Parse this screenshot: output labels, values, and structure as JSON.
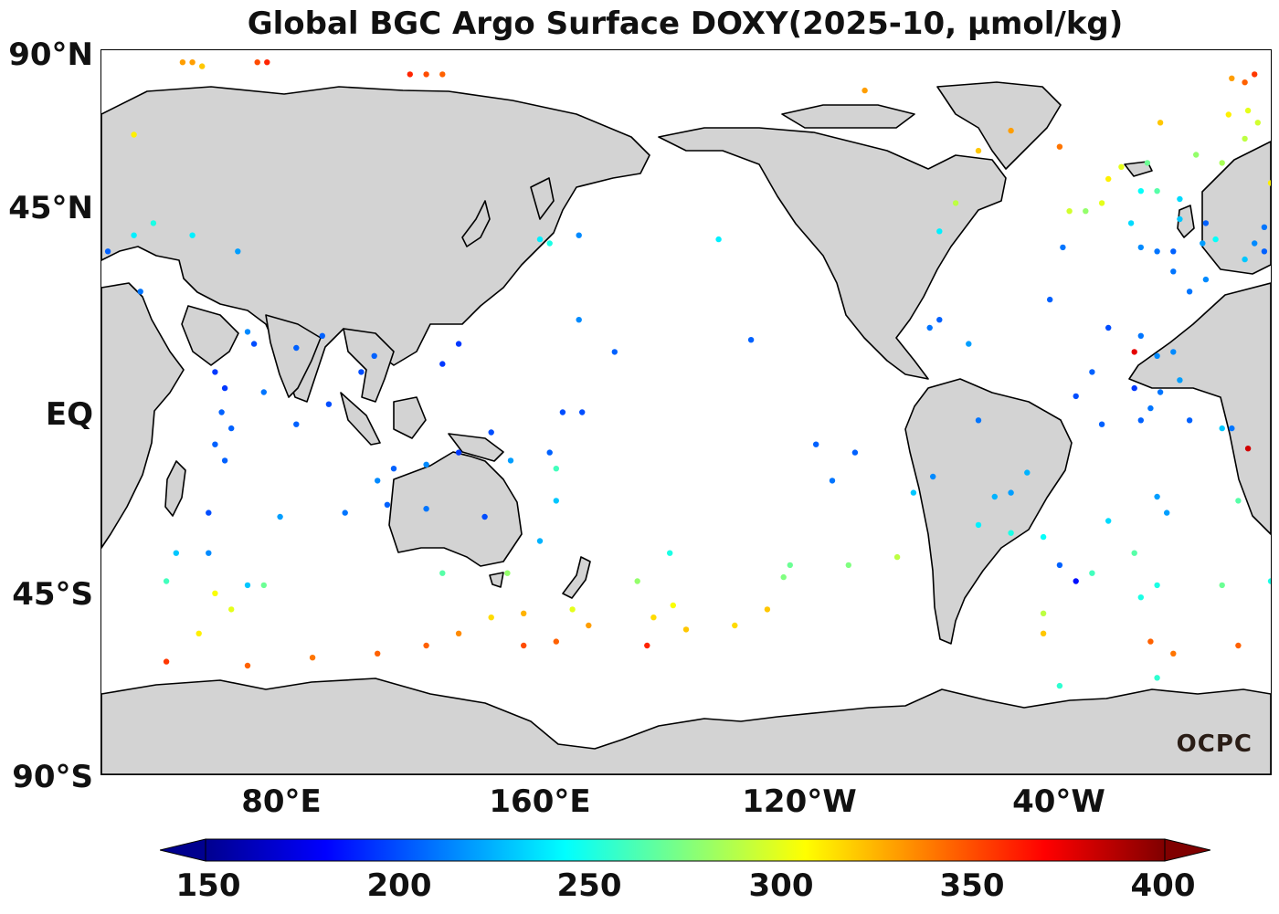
{
  "title": "Global BGC Argo Surface DOXY(2025-10, μmol/kg)",
  "lat_labels": [
    "90°N",
    "45°N",
    "EQ",
    "45°S",
    "90°S"
  ],
  "lon_labels": [
    "80°E",
    "160°E",
    "120°W",
    "40°W"
  ],
  "colorbar": {
    "ticks": [
      "150",
      "200",
      "250",
      "300",
      "350",
      "400"
    ],
    "min": 150,
    "max": 400,
    "colormap": "jet"
  },
  "logo_text": "OCPC",
  "colors": {
    "land": "#d3d3d3",
    "ocean": "#ffffff",
    "coast": "#000000"
  },
  "map_extent": {
    "lon_min": 20,
    "lon_max": 380,
    "lat_min": -90,
    "lat_max": 90
  },
  "floats": [
    [
      30,
      69,
      310
    ],
    [
      30,
      44,
      240
    ],
    [
      22,
      40,
      205
    ],
    [
      32,
      30,
      210
    ],
    [
      55,
      10,
      195
    ],
    [
      55,
      -8,
      205
    ],
    [
      53,
      -25,
      200
    ],
    [
      53,
      -35,
      215
    ],
    [
      43,
      -35,
      230
    ],
    [
      40,
      -42,
      260
    ],
    [
      55,
      -45,
      305
    ],
    [
      60,
      -49,
      300
    ],
    [
      75,
      -26,
      220
    ],
    [
      65,
      -43,
      230
    ],
    [
      95,
      -25,
      210
    ],
    [
      108,
      -23,
      205
    ],
    [
      120,
      -24,
      210
    ],
    [
      125,
      -40,
      265
    ],
    [
      138,
      -26,
      200
    ],
    [
      145,
      -40,
      280
    ],
    [
      155,
      -32,
      225
    ],
    [
      160,
      -22,
      230
    ],
    [
      160,
      -14,
      260
    ],
    [
      158,
      -10,
      205
    ],
    [
      146,
      -12,
      220
    ],
    [
      140,
      -5,
      200
    ],
    [
      130,
      -10,
      195
    ],
    [
      120,
      -13,
      215
    ],
    [
      110,
      -14,
      205
    ],
    [
      105,
      -17,
      215
    ],
    [
      70,
      5,
      210
    ],
    [
      80,
      -3,
      205
    ],
    [
      90,
      2,
      200
    ],
    [
      65,
      20,
      215
    ],
    [
      80,
      16,
      205
    ],
    [
      88,
      19,
      205
    ],
    [
      100,
      10,
      200
    ],
    [
      104,
      14,
      205
    ],
    [
      125,
      12,
      195
    ],
    [
      130,
      17,
      195
    ],
    [
      162,
      0,
      200
    ],
    [
      168,
      0,
      200
    ],
    [
      178,
      15,
      205
    ],
    [
      167,
      23,
      215
    ],
    [
      158,
      42,
      250
    ],
    [
      155,
      43,
      240
    ],
    [
      167,
      44,
      215
    ],
    [
      210,
      43,
      240
    ],
    [
      220,
      18,
      205
    ],
    [
      195,
      -35,
      250
    ],
    [
      185,
      -42,
      280
    ],
    [
      196,
      -48,
      305
    ],
    [
      188,
      -58,
      360
    ],
    [
      170,
      -53,
      330
    ],
    [
      160,
      -57,
      345
    ],
    [
      150,
      -58,
      350
    ],
    [
      140,
      -51,
      315
    ],
    [
      130,
      -55,
      335
    ],
    [
      120,
      -58,
      345
    ],
    [
      105,
      -60,
      345
    ],
    [
      85,
      -61,
      340
    ],
    [
      65,
      -63,
      345
    ],
    [
      50,
      -55,
      310
    ],
    [
      40,
      -62,
      355
    ],
    [
      150,
      -50,
      325
    ],
    [
      165,
      -49,
      300
    ],
    [
      190,
      -51,
      315
    ],
    [
      200,
      -54,
      320
    ],
    [
      215,
      -53,
      315
    ],
    [
      230,
      -41,
      275
    ],
    [
      250,
      -38,
      275
    ],
    [
      265,
      -36,
      290
    ],
    [
      290,
      -28,
      240
    ],
    [
      295,
      -21,
      225
    ],
    [
      300,
      -20,
      220
    ],
    [
      305,
      -15,
      225
    ],
    [
      290,
      -2,
      210
    ],
    [
      287,
      17,
      220
    ],
    [
      276,
      -16,
      215
    ],
    [
      245,
      -17,
      210
    ],
    [
      240,
      -8,
      205
    ],
    [
      270,
      -20,
      230
    ],
    [
      300,
      -30,
      250
    ],
    [
      315,
      -38,
      205
    ],
    [
      320,
      -42,
      185
    ],
    [
      310,
      -50,
      290
    ],
    [
      325,
      -40,
      260
    ],
    [
      345,
      -43,
      250
    ],
    [
      365,
      -43,
      270
    ],
    [
      370,
      -58,
      345
    ],
    [
      380,
      -42,
      250
    ],
    [
      350,
      -60,
      340
    ],
    [
      343,
      -57,
      345
    ],
    [
      340,
      -46,
      250
    ],
    [
      345,
      -66,
      255
    ],
    [
      315,
      -68,
      255
    ],
    [
      310,
      -55,
      320
    ],
    [
      310,
      -31,
      245
    ],
    [
      330,
      -27,
      235
    ],
    [
      338,
      -35,
      265
    ],
    [
      345,
      -21,
      220
    ],
    [
      348,
      -25,
      220
    ],
    [
      365,
      -4,
      230
    ],
    [
      370,
      -22,
      265
    ],
    [
      373,
      -9,
      380
    ],
    [
      368,
      -4,
      210
    ],
    [
      355,
      -2,
      205
    ],
    [
      340,
      -2,
      205
    ],
    [
      343,
      1,
      210
    ],
    [
      346,
      5,
      210
    ],
    [
      338,
      6,
      195
    ],
    [
      328,
      -3,
      205
    ],
    [
      320,
      4,
      200
    ],
    [
      345,
      14,
      215
    ],
    [
      350,
      15,
      215
    ],
    [
      352,
      8,
      220
    ],
    [
      338,
      15,
      375
    ],
    [
      340,
      19,
      210
    ],
    [
      330,
      21,
      200
    ],
    [
      325,
      10,
      205
    ],
    [
      312,
      28,
      205
    ],
    [
      316,
      41,
      210
    ],
    [
      323,
      50,
      280
    ],
    [
      328,
      52,
      300
    ],
    [
      318,
      50,
      295
    ],
    [
      345,
      40,
      210
    ],
    [
      350,
      35,
      210
    ],
    [
      355,
      30,
      210
    ],
    [
      360,
      33,
      215
    ],
    [
      375,
      42,
      215
    ],
    [
      378,
      40,
      205
    ],
    [
      372,
      38,
      230
    ],
    [
      378,
      46,
      210
    ],
    [
      360,
      47,
      205
    ],
    [
      350,
      40,
      205
    ],
    [
      352,
      48,
      230
    ],
    [
      340,
      41,
      215
    ],
    [
      337,
      47,
      235
    ],
    [
      340,
      55,
      245
    ],
    [
      345,
      55,
      265
    ],
    [
      342,
      62,
      270
    ],
    [
      352,
      53,
      235
    ],
    [
      357,
      64,
      280
    ],
    [
      365,
      62,
      285
    ],
    [
      372,
      68,
      290
    ],
    [
      376,
      72,
      295
    ],
    [
      373,
      75,
      300
    ],
    [
      367,
      74,
      310
    ],
    [
      372,
      82,
      345
    ],
    [
      375,
      84,
      355
    ],
    [
      368,
      83,
      330
    ],
    [
      380,
      57,
      310
    ],
    [
      383,
      62,
      310
    ],
    [
      386,
      56,
      300
    ],
    [
      363,
      43,
      245
    ],
    [
      359,
      42,
      220
    ],
    [
      346,
      72,
      320
    ],
    [
      334,
      61,
      300
    ],
    [
      330,
      58,
      310
    ],
    [
      315,
      66,
      340
    ],
    [
      300,
      70,
      330
    ],
    [
      290,
      65,
      320
    ],
    [
      278,
      45,
      240
    ],
    [
      283,
      52,
      290
    ],
    [
      278,
      23,
      205
    ],
    [
      275,
      21,
      210
    ],
    [
      252,
      -10,
      205
    ],
    [
      232,
      -38,
      270
    ],
    [
      225,
      -49,
      320
    ],
    [
      58,
      -12,
      205
    ],
    [
      60,
      -4,
      205
    ],
    [
      57,
      0,
      205
    ],
    [
      58,
      6,
      195
    ],
    [
      62,
      40,
      220
    ],
    [
      67,
      17,
      200
    ],
    [
      70,
      -43,
      270
    ],
    [
      45,
      87,
      330
    ],
    [
      48,
      87,
      330
    ],
    [
      51,
      86,
      320
    ],
    [
      68,
      87,
      350
    ],
    [
      71,
      87,
      360
    ],
    [
      115,
      84,
      360
    ],
    [
      120,
      84,
      350
    ],
    [
      125,
      84,
      345
    ],
    [
      255,
      80,
      330
    ],
    [
      36,
      47,
      250
    ],
    [
      48,
      44,
      240
    ]
  ]
}
